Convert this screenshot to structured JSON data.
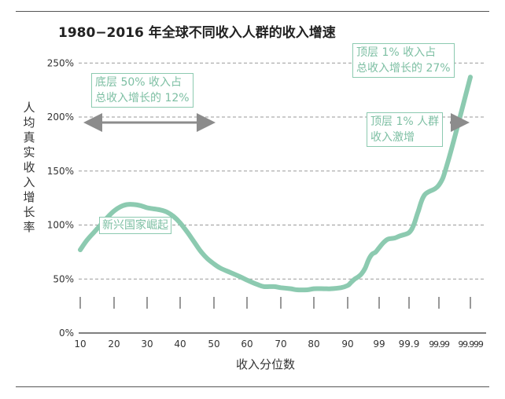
{
  "colors": {
    "curve": "#8ccab0",
    "annotation_text": "#7dbfa3",
    "arrow": "#8c8c8c",
    "grid": "#9a9a9a"
  },
  "annotations": {
    "bottom50": {
      "line1": "底层 50% 收入占",
      "line2": "总收入增长的 12%"
    },
    "top1_share": {
      "line1": "顶层 1% 收入占",
      "line2": "总收入增长的 27%"
    },
    "top1_surge": {
      "line1": "顶层 1% 人群",
      "line2": "收入激增"
    },
    "emerging": {
      "line1": "新兴国家崛起"
    }
  },
  "chart_data": {
    "type": "line",
    "title": "1980−2016 年全球不同收入人群的收入增速",
    "xlabel": "收入分位数",
    "ylabel": "人均真实收入增长率",
    "y_unit": "%",
    "ylim": [
      0,
      250
    ],
    "yticks": [
      "0%",
      "50%",
      "100%",
      "150%",
      "200%",
      "250%"
    ],
    "xticks": [
      "10",
      "20",
      "30",
      "40",
      "50",
      "60",
      "70",
      "80",
      "90",
      "99",
      "99.9",
      "99.99",
      "99.999"
    ],
    "grid": "horizontal dashed",
    "x": [
      "10",
      "12",
      "14",
      "16",
      "18",
      "20",
      "22",
      "24",
      "26",
      "28",
      "30",
      "32",
      "34",
      "36",
      "38",
      "40",
      "42",
      "44",
      "46",
      "48",
      "50",
      "52",
      "55",
      "58",
      "60",
      "63",
      "65",
      "68",
      "70",
      "73",
      "75",
      "78",
      "80",
      "83",
      "85",
      "88",
      "90",
      "91",
      "92",
      "93",
      "94",
      "95",
      "96",
      "97",
      "98",
      "99",
      "99.3",
      "99.5",
      "99.7",
      "99.8",
      "99.9",
      "99.93",
      "99.95",
      "99.97",
      "99.99",
      "99.995",
      "99.999"
    ],
    "values": [
      77,
      86,
      93,
      100,
      107,
      113,
      117,
      119,
      119,
      118,
      116,
      115,
      114,
      112,
      108,
      102,
      94,
      85,
      76,
      69,
      64,
      60,
      56,
      52,
      49,
      45,
      43,
      43,
      42,
      41,
      40,
      40,
      41,
      41,
      41,
      42,
      44,
      47,
      50,
      52,
      55,
      60,
      68,
      73,
      75,
      79,
      84,
      87,
      88,
      90,
      93,
      100,
      112,
      128,
      137,
      160,
      237
    ]
  }
}
